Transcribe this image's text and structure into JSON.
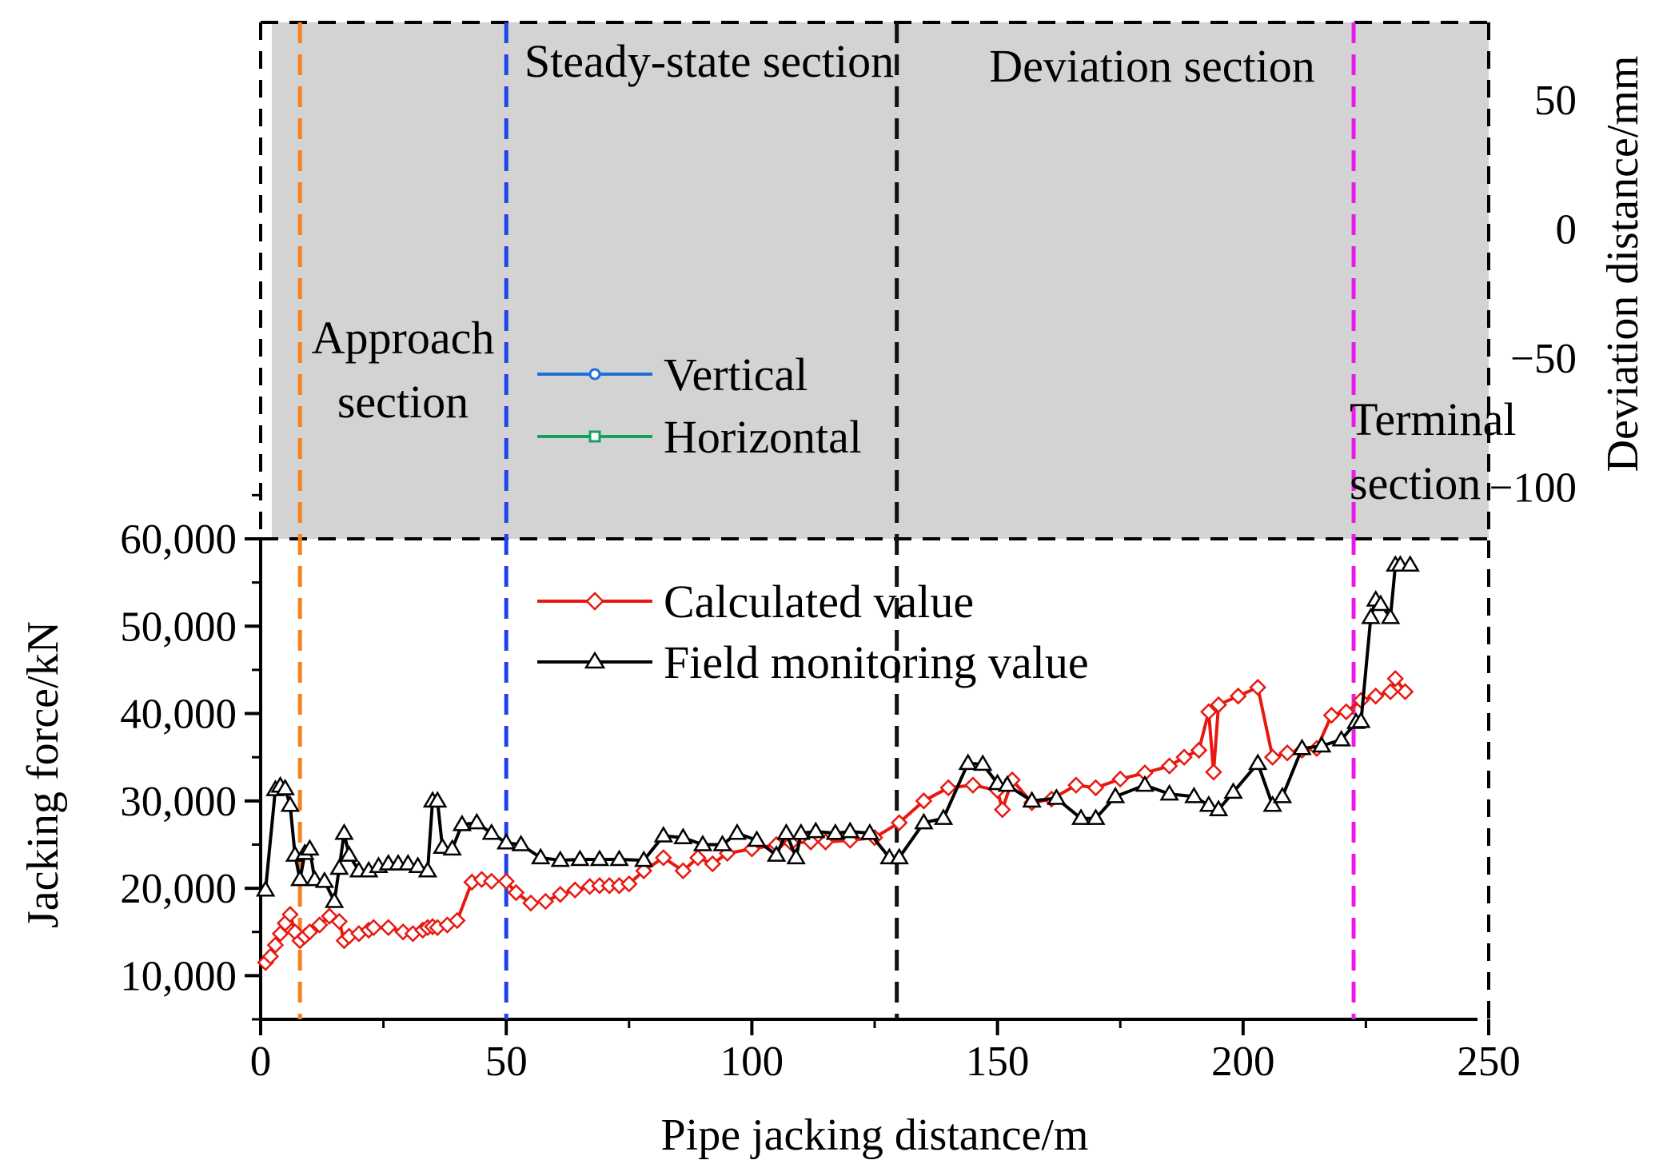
{
  "chart_data": [
    {
      "id": "deviation",
      "type": "line",
      "xlim": [
        0,
        250
      ],
      "ylim": [
        -120,
        80
      ],
      "y2label": "Deviation distance/mm",
      "y2ticks": [
        50,
        0,
        -50,
        -100
      ],
      "y2tick_labels": [
        "50",
        "0",
        "−50",
        "−100"
      ],
      "background": "#d3d3d3",
      "series": [
        {
          "name": "Vertical",
          "color": "#1f6fd8",
          "marker": "circle",
          "values": []
        },
        {
          "name": "Horizontal",
          "color": "#17a05d",
          "marker": "square",
          "values": []
        }
      ]
    },
    {
      "id": "jacking-force",
      "type": "line",
      "xlabel": "Pipe jacking distance/m",
      "ylabel": "Jacking force/kN",
      "xlim": [
        0,
        250
      ],
      "ylim": [
        5000,
        60000
      ],
      "xticks": [
        0,
        50,
        100,
        150,
        200,
        250
      ],
      "xtick_labels": [
        "0",
        "50",
        "100",
        "150",
        "200",
        "250"
      ],
      "yticks": [
        10000,
        20000,
        30000,
        40000,
        50000,
        60000
      ],
      "ytick_labels": [
        "10,000",
        "20,000",
        "30,000",
        "40,000",
        "50,000",
        "60,000"
      ],
      "series": [
        {
          "name": "Calculated value",
          "color": "#e8170f",
          "marker": "diamond",
          "x": [
            1,
            2,
            3,
            4,
            5,
            6,
            7,
            8,
            9,
            10,
            12,
            14,
            16,
            17,
            18,
            20,
            22,
            23,
            26,
            29,
            31,
            33,
            34,
            35,
            36,
            38,
            40,
            43,
            45,
            47,
            50,
            52,
            55,
            58,
            61,
            64,
            67,
            69,
            71,
            73,
            75,
            78,
            82,
            86,
            89,
            92,
            95,
            100,
            105,
            108,
            112,
            115,
            120,
            125,
            130,
            135,
            140,
            145,
            150,
            151,
            153,
            157,
            161,
            166,
            170,
            175,
            180,
            185,
            188,
            191,
            193,
            194,
            195,
            199,
            203,
            206,
            209,
            212,
            215,
            218,
            221,
            224,
            227,
            230,
            231,
            233
          ],
          "values": [
            11500,
            12200,
            13500,
            14800,
            16000,
            17000,
            15000,
            14000,
            14500,
            15000,
            15800,
            16800,
            16200,
            14000,
            14500,
            14800,
            15200,
            15500,
            15500,
            15000,
            14800,
            15200,
            15500,
            15600,
            15500,
            15800,
            16300,
            20700,
            21000,
            20800,
            20800,
            19500,
            18300,
            18500,
            19300,
            19800,
            20200,
            20300,
            20300,
            20300,
            20500,
            22000,
            23500,
            22000,
            23500,
            22800,
            24000,
            24500,
            25000,
            25200,
            25300,
            25300,
            25500,
            25800,
            27500,
            30000,
            31500,
            31800,
            31200,
            29000,
            32400,
            29800,
            30200,
            31800,
            31500,
            32500,
            33200,
            34000,
            35000,
            35800,
            40200,
            33300,
            41000,
            42000,
            43000,
            35000,
            35500,
            35800,
            36000,
            39800,
            40200,
            41500,
            42000,
            42500,
            44000,
            42500
          ]
        },
        {
          "name": "Field monitoring value",
          "color": "#000000",
          "marker": "triangle",
          "x": [
            1,
            3,
            4,
            5,
            6,
            7,
            8,
            9,
            10,
            11,
            13,
            15,
            16,
            17,
            18,
            20,
            22,
            24,
            26,
            28,
            30,
            32,
            34,
            35,
            36,
            37,
            39,
            41,
            44,
            47,
            50,
            53,
            57,
            61,
            65,
            69,
            73,
            78,
            82,
            86,
            90,
            94,
            97,
            101,
            105,
            107,
            109,
            110,
            113,
            117,
            120,
            124,
            128,
            130,
            135,
            139,
            144,
            147,
            150,
            152,
            157,
            162,
            167,
            170,
            174,
            180,
            185,
            190,
            193,
            195,
            198,
            203,
            206,
            208,
            212,
            216,
            220,
            223,
            224,
            226,
            227,
            228,
            230,
            231,
            232,
            234
          ],
          "values": [
            19800,
            31300,
            31700,
            31400,
            29500,
            23800,
            21000,
            24000,
            24500,
            21000,
            20800,
            18500,
            22300,
            26300,
            23800,
            22000,
            22000,
            22500,
            22800,
            22800,
            22800,
            22500,
            22000,
            30000,
            30000,
            24700,
            24500,
            27300,
            27500,
            26300,
            25200,
            25000,
            23500,
            23200,
            23300,
            23300,
            23300,
            23200,
            26000,
            25800,
            25000,
            25000,
            26300,
            25500,
            23800,
            26300,
            23500,
            26300,
            26500,
            26300,
            26500,
            26300,
            23500,
            23500,
            27500,
            28000,
            34300,
            34200,
            32000,
            31800,
            30000,
            30300,
            28000,
            28000,
            30500,
            31800,
            30800,
            30500,
            29500,
            29000,
            31000,
            34300,
            29500,
            30500,
            36000,
            36300,
            37000,
            39000,
            39100,
            51000,
            53000,
            52500,
            51000,
            57000,
            57000,
            57000
          ]
        }
      ]
    }
  ],
  "sections": [
    {
      "x": 8,
      "color": "#f5821f",
      "label_lines": [
        "Approach",
        "section"
      ]
    },
    {
      "x": 50,
      "color": "#1c44e8",
      "label_lines": [
        "Steady-state section"
      ]
    },
    {
      "x": 129.5,
      "color": "#111111",
      "label_lines": [
        "Deviation section"
      ]
    },
    {
      "x": 222.5,
      "color": "#e81ce8",
      "label_lines": [
        "Terminal",
        "section"
      ]
    }
  ]
}
